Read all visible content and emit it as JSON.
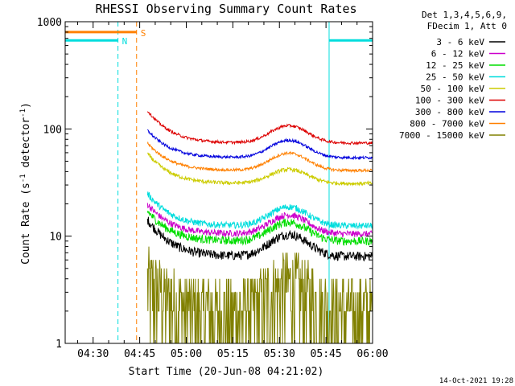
{
  "chart_data": {
    "type": "line",
    "title": "RHESSI Observing Summary Count Rates",
    "xlabel": "Start Time (20-Jun-08 04:21:02)",
    "ylabel_main": "Count Rate (s",
    "ylabel_sup1": "-1",
    "ylabel_mid": " detector",
    "ylabel_sup2": "-1",
    "ylabel_end": ")",
    "x_ticks": [
      {
        "label": "04:30",
        "min": 9
      },
      {
        "label": "04:45",
        "min": 24
      },
      {
        "label": "05:00",
        "min": 39
      },
      {
        "label": "05:15",
        "min": 54
      },
      {
        "label": "05:30",
        "min": 69
      },
      {
        "label": "05:45",
        "min": 84
      },
      {
        "label": "06:00",
        "min": 99
      }
    ],
    "xlim_minutes": [
      0,
      99
    ],
    "y_scale": "log",
    "ylim": [
      1,
      1000
    ],
    "y_ticks": [
      {
        "label": "1",
        "value": 1
      },
      {
        "label": "10",
        "value": 10
      },
      {
        "label": "100",
        "value": 100
      },
      {
        "label": "1000",
        "value": 1000
      }
    ],
    "legend_header": [
      "Det 1,3,4,5,6,9,",
      "FDecim 1, Att 0"
    ],
    "legend_placement": "top-right outside",
    "series": [
      {
        "name": "3 - 6 keV",
        "color": "#000000",
        "base": 6.5,
        "bump": 1.6,
        "start": 26.5,
        "decay": 2.2,
        "noise": 0.1
      },
      {
        "name": "6 - 12 keV",
        "color": "#cc00cc",
        "base": 10.5,
        "bump": 1.5,
        "start": 26.5,
        "decay": 1.9,
        "noise": 0.07
      },
      {
        "name": "12 - 25 keV",
        "color": "#00dd00",
        "base": 9.0,
        "bump": 1.5,
        "start": 26.5,
        "decay": 1.9,
        "noise": 0.09
      },
      {
        "name": "25 - 50 keV",
        "color": "#00dddd",
        "base": 12.5,
        "bump": 1.5,
        "start": 26.5,
        "decay": 2.0,
        "noise": 0.07
      },
      {
        "name": "50 - 100 keV",
        "color": "#cccc00",
        "base": 31,
        "bump": 1.35,
        "start": 26.5,
        "decay": 1.9,
        "noise": 0.04
      },
      {
        "name": "100 - 300 keV",
        "color": "#dd0000",
        "base": 74,
        "bump": 1.45,
        "start": 26.5,
        "decay": 2.0,
        "noise": 0.03
      },
      {
        "name": "300 - 800 keV",
        "color": "#0000dd",
        "base": 54,
        "bump": 1.45,
        "start": 26.5,
        "decay": 1.8,
        "noise": 0.03
      },
      {
        "name": "800 - 7000 keV",
        "color": "#ff8000",
        "base": 41,
        "bump": 1.45,
        "start": 26.5,
        "decay": 1.8,
        "noise": 0.03
      },
      {
        "name": "7000 - 15000 keV",
        "color": "#808000",
        "base": 2.0,
        "bump": 1.8,
        "start": 26.5,
        "decay": 2.0,
        "noise": 0.25
      }
    ],
    "bump_center_min": 72,
    "bump_width_min": 8,
    "flags": [
      {
        "label": "N",
        "color": "#00dddd",
        "y": 670,
        "segments": [
          [
            0,
            17
          ],
          [
            85,
            99
          ]
        ],
        "vlines": [
          17,
          99
        ],
        "solid_vlines": [
          0,
          85
        ]
      },
      {
        "label": "S",
        "color": "#ff8000",
        "y": 800,
        "segments": [
          [
            0,
            23
          ]
        ],
        "vlines": [
          23
        ],
        "solid_vlines": []
      }
    ],
    "grid": false
  },
  "footer": {
    "date": "14-Oct-2021 19:28"
  }
}
